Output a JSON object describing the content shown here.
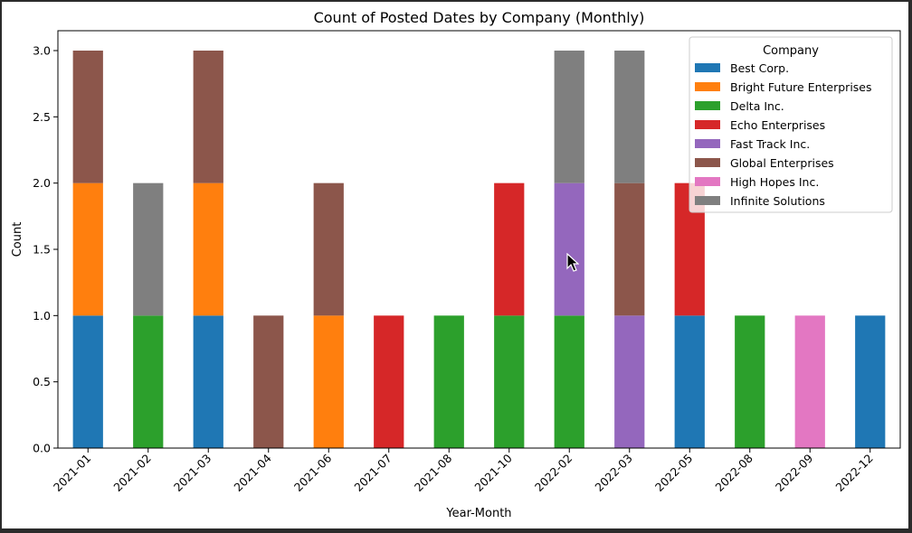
{
  "chart_data": {
    "type": "bar",
    "stacked": true,
    "title": "Count of Posted Dates by Company (Monthly)",
    "xlabel": "Year-Month",
    "ylabel": "Count",
    "ylim": [
      0,
      3.15
    ],
    "yticks": [
      "0.0",
      "0.5",
      "1.0",
      "1.5",
      "2.0",
      "2.5",
      "3.0"
    ],
    "grid": false,
    "legend_title": "Company",
    "legend_position": "top-right",
    "categories": [
      "2021-01",
      "2021-02",
      "2021-03",
      "2021-04",
      "2021-06",
      "2021-07",
      "2021-08",
      "2021-10",
      "2022-02",
      "2022-03",
      "2022-05",
      "2022-08",
      "2022-09",
      "2022-12"
    ],
    "series": [
      {
        "name": "Best Corp.",
        "color": "#1f77b4",
        "values": [
          1,
          0,
          1,
          0,
          0,
          0,
          0,
          0,
          0,
          0,
          1,
          0,
          0,
          1
        ]
      },
      {
        "name": "Bright Future Enterprises",
        "color": "#ff7f0e",
        "values": [
          1,
          0,
          1,
          0,
          1,
          0,
          0,
          0,
          0,
          0,
          0,
          0,
          0,
          0
        ]
      },
      {
        "name": "Delta Inc.",
        "color": "#2ca02c",
        "values": [
          0,
          1,
          0,
          0,
          0,
          0,
          1,
          1,
          1,
          0,
          0,
          1,
          0,
          0
        ]
      },
      {
        "name": "Echo Enterprises",
        "color": "#d62728",
        "values": [
          0,
          0,
          0,
          0,
          0,
          1,
          0,
          1,
          0,
          0,
          1,
          0,
          0,
          0
        ]
      },
      {
        "name": "Fast Track Inc.",
        "color": "#9467bd",
        "values": [
          0,
          0,
          0,
          0,
          0,
          0,
          0,
          0,
          1,
          1,
          0,
          0,
          0,
          0
        ]
      },
      {
        "name": "Global Enterprises",
        "color": "#8c564b",
        "values": [
          1,
          0,
          1,
          1,
          1,
          0,
          0,
          0,
          0,
          1,
          0,
          0,
          0,
          0
        ]
      },
      {
        "name": "High Hopes Inc.",
        "color": "#e377c2",
        "values": [
          0,
          0,
          0,
          0,
          0,
          0,
          0,
          0,
          0,
          0,
          0,
          0,
          1,
          0
        ]
      },
      {
        "name": "Infinite Solutions",
        "color": "#7f7f7f",
        "values": [
          0,
          1,
          0,
          0,
          0,
          0,
          0,
          0,
          1,
          1,
          0,
          0,
          0,
          0
        ]
      }
    ]
  }
}
